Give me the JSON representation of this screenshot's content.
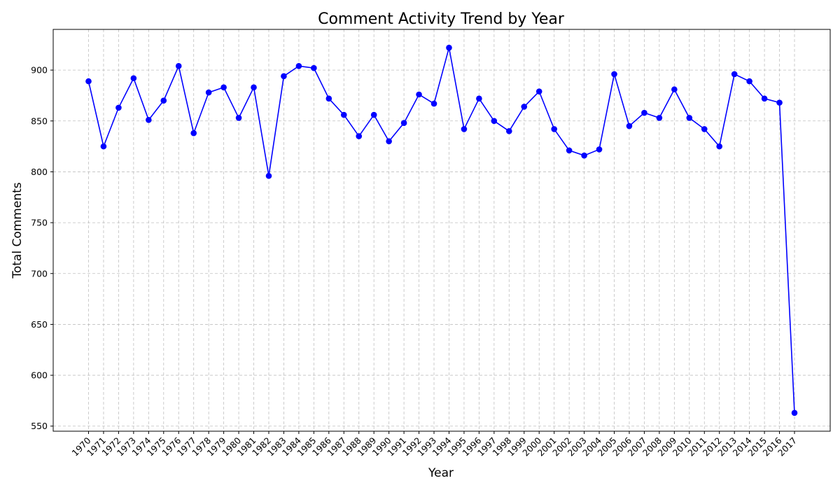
{
  "chart_data": {
    "type": "line",
    "title": "Comment Activity Trend by Year",
    "xlabel": "Year",
    "ylabel": "Total Comments",
    "ylim": [
      545,
      940
    ],
    "yticks": [
      550,
      600,
      650,
      700,
      750,
      800,
      850,
      900
    ],
    "grid": true,
    "colors": {
      "series": "#0000ff"
    },
    "categories": [
      "1970",
      "1971",
      "1972",
      "1973",
      "1974",
      "1975",
      "1976",
      "1977",
      "1978",
      "1979",
      "1980",
      "1981",
      "1982",
      "1983",
      "1984",
      "1985",
      "1986",
      "1987",
      "1988",
      "1989",
      "1990",
      "1991",
      "1992",
      "1993",
      "1994",
      "1995",
      "1996",
      "1997",
      "1998",
      "1999",
      "2000",
      "2001",
      "2002",
      "2003",
      "2004",
      "2005",
      "2006",
      "2007",
      "2008",
      "2009",
      "2010",
      "2011",
      "2012",
      "2013",
      "2014",
      "2015",
      "2016",
      "2017"
    ],
    "series": [
      {
        "values": [
          889,
          825,
          863,
          892,
          851,
          870,
          904,
          838,
          878,
          883,
          853,
          883,
          796,
          894,
          904,
          902,
          872,
          856,
          835,
          856,
          830,
          848,
          876,
          867,
          922,
          842,
          872,
          850,
          840,
          864,
          879,
          842,
          821,
          816,
          822,
          896,
          845,
          858,
          853,
          881,
          853,
          842,
          825,
          896,
          889,
          872,
          868,
          563
        ]
      }
    ]
  }
}
